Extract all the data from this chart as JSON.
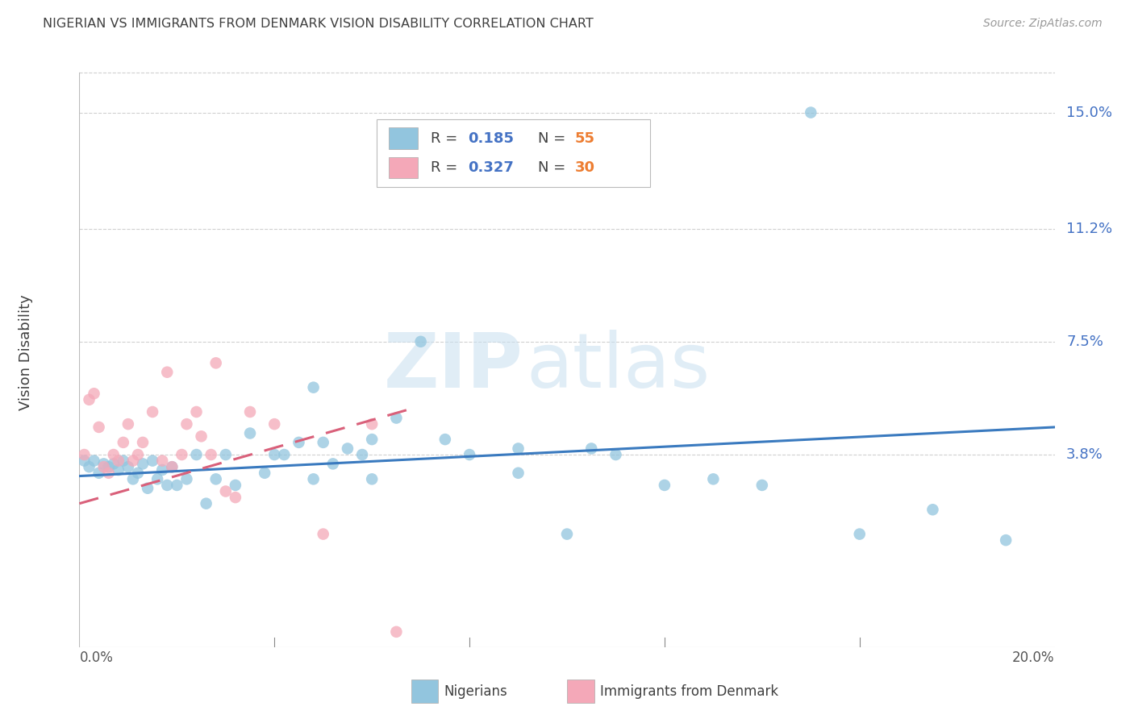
{
  "title": "NIGERIAN VS IMMIGRANTS FROM DENMARK VISION DISABILITY CORRELATION CHART",
  "source": "Source: ZipAtlas.com",
  "ylabel": "Vision Disability",
  "ytick_labels": [
    "15.0%",
    "11.2%",
    "7.5%",
    "3.8%"
  ],
  "ytick_values": [
    0.15,
    0.112,
    0.075,
    0.038
  ],
  "xlim": [
    0.0,
    0.2
  ],
  "ylim": [
    -0.025,
    0.168
  ],
  "blue_color": "#92c5de",
  "pink_color": "#f4a8b8",
  "blue_line_color": "#3a7abf",
  "pink_line_color": "#d9607a",
  "blue_scatter_x": [
    0.001,
    0.002,
    0.003,
    0.004,
    0.005,
    0.006,
    0.007,
    0.008,
    0.009,
    0.01,
    0.011,
    0.012,
    0.013,
    0.014,
    0.015,
    0.016,
    0.017,
    0.018,
    0.019,
    0.02,
    0.022,
    0.024,
    0.026,
    0.028,
    0.03,
    0.032,
    0.035,
    0.038,
    0.04,
    0.042,
    0.045,
    0.048,
    0.05,
    0.052,
    0.055,
    0.058,
    0.06,
    0.065,
    0.07,
    0.075,
    0.08,
    0.09,
    0.1,
    0.11,
    0.12,
    0.13,
    0.14,
    0.15,
    0.16,
    0.175,
    0.048,
    0.06,
    0.09,
    0.105,
    0.19
  ],
  "blue_scatter_y": [
    0.036,
    0.034,
    0.036,
    0.032,
    0.035,
    0.034,
    0.035,
    0.033,
    0.036,
    0.034,
    0.03,
    0.032,
    0.035,
    0.027,
    0.036,
    0.03,
    0.033,
    0.028,
    0.034,
    0.028,
    0.03,
    0.038,
    0.022,
    0.03,
    0.038,
    0.028,
    0.045,
    0.032,
    0.038,
    0.038,
    0.042,
    0.03,
    0.042,
    0.035,
    0.04,
    0.038,
    0.03,
    0.05,
    0.075,
    0.043,
    0.038,
    0.04,
    0.012,
    0.038,
    0.028,
    0.03,
    0.028,
    0.15,
    0.012,
    0.02,
    0.06,
    0.043,
    0.032,
    0.04,
    0.01
  ],
  "pink_scatter_x": [
    0.001,
    0.002,
    0.003,
    0.004,
    0.005,
    0.006,
    0.007,
    0.008,
    0.009,
    0.01,
    0.011,
    0.012,
    0.013,
    0.015,
    0.017,
    0.019,
    0.021,
    0.024,
    0.027,
    0.03,
    0.018,
    0.022,
    0.025,
    0.028,
    0.032,
    0.035,
    0.04,
    0.05,
    0.06,
    0.065
  ],
  "pink_scatter_y": [
    0.038,
    0.056,
    0.058,
    0.047,
    0.034,
    0.032,
    0.038,
    0.036,
    0.042,
    0.048,
    0.036,
    0.038,
    0.042,
    0.052,
    0.036,
    0.034,
    0.038,
    0.052,
    0.038,
    0.026,
    0.065,
    0.048,
    0.044,
    0.068,
    0.024,
    0.052,
    0.048,
    0.012,
    0.048,
    -0.02
  ],
  "blue_line_x": [
    0.0,
    0.2
  ],
  "blue_line_y": [
    0.031,
    0.047
  ],
  "pink_line_x": [
    0.0,
    0.068
  ],
  "pink_line_y": [
    0.022,
    0.053
  ],
  "watermark_zip": "ZIP",
  "watermark_atlas": "atlas",
  "bg_color": "#ffffff",
  "grid_color": "#d0d0d0",
  "title_color": "#404040",
  "axis_label_color": "#4472c4",
  "legend_r_color": "#4472c4",
  "legend_n_color": "#ed7d31"
}
